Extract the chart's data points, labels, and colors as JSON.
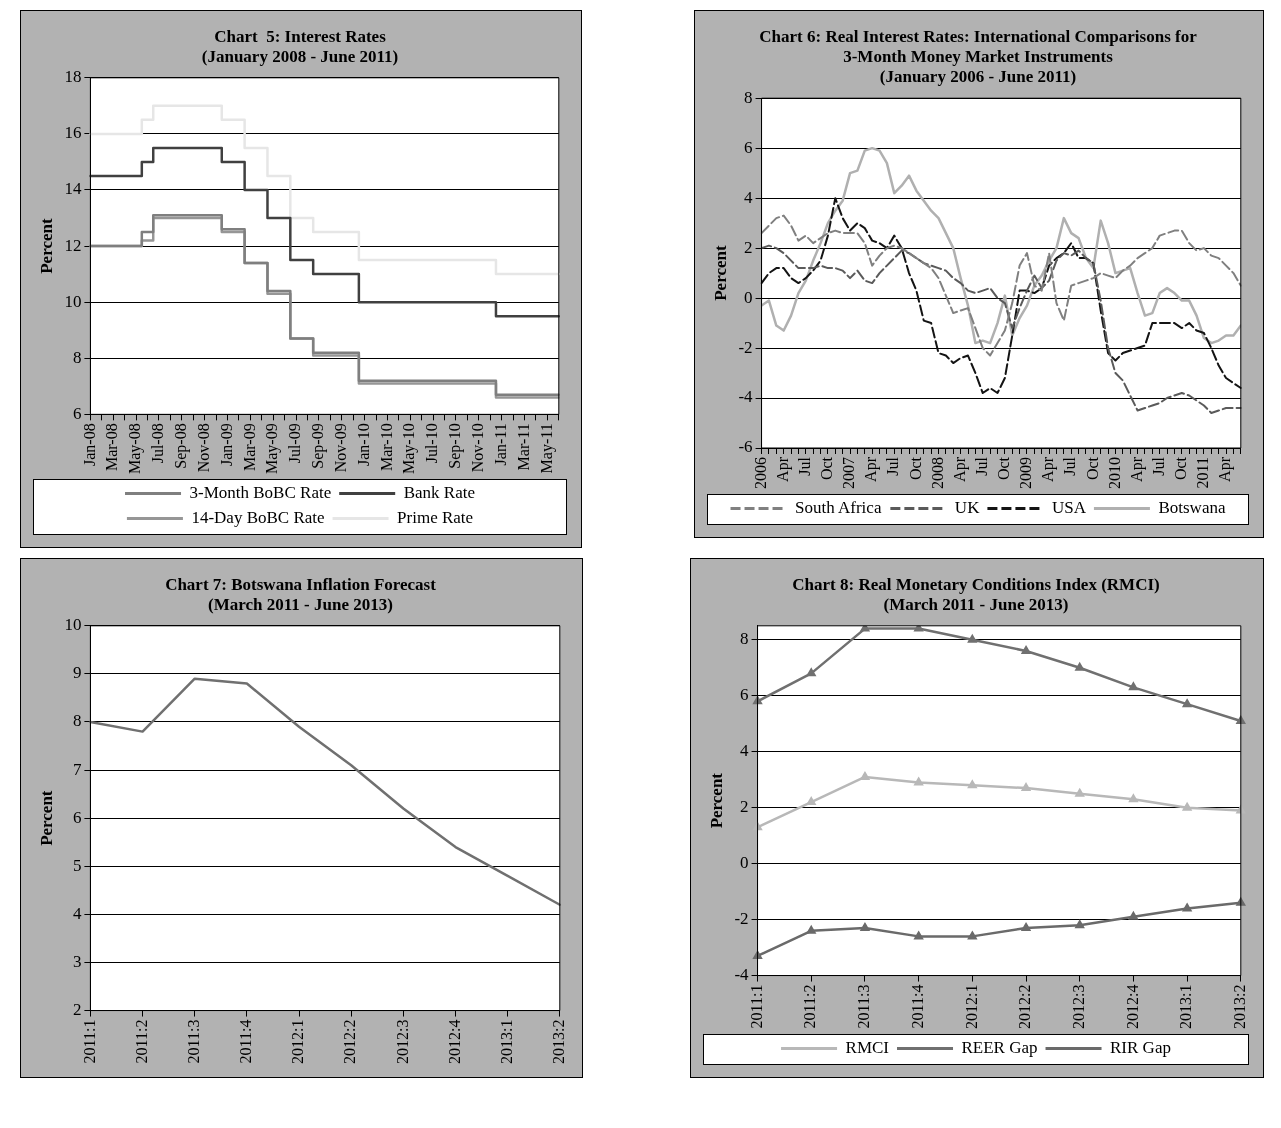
{
  "chart_data": [
    {
      "type": "step",
      "title": "Chart  5: Interest Rates",
      "subtitle": "(January 2008 - June 2011)",
      "ylabel": "Percent",
      "categories": [
        "Jan-08",
        null,
        "Mar-08",
        null,
        "May-08",
        null,
        "Jul-08",
        null,
        "Sep-08",
        null,
        "Nov-08",
        null,
        "Jan-09",
        null,
        "Mar-09",
        null,
        "May-09",
        null,
        "Jul-09",
        null,
        "Sep-09",
        null,
        "Nov-09",
        null,
        "Jan-10",
        null,
        "Mar-10",
        null,
        "May-10",
        null,
        "Jul-10",
        null,
        "Sep-10",
        null,
        "Nov-10",
        null,
        "Jan-11",
        null,
        "Mar-11",
        null,
        "May-11",
        null
      ],
      "series": [
        {
          "name": "3-Month BoBC Rate",
          "color": "#7f7f7f",
          "values": [
            12,
            12,
            12,
            12,
            12,
            12.5,
            13.1,
            13.1,
            13.1,
            13.1,
            13.1,
            13.1,
            12.6,
            12.6,
            11.4,
            11.4,
            10.4,
            10.4,
            8.7,
            8.7,
            8.2,
            8.2,
            8.2,
            8.2,
            7.2,
            7.2,
            7.2,
            7.2,
            7.2,
            7.2,
            7.2,
            7.2,
            7.2,
            7.2,
            7.2,
            7.2,
            6.7,
            6.7,
            6.7,
            6.7,
            6.7,
            6.7
          ]
        },
        {
          "name": "Bank Rate",
          "color": "#404040",
          "values": [
            14.5,
            14.5,
            14.5,
            14.5,
            14.5,
            15,
            15.5,
            15.5,
            15.5,
            15.5,
            15.5,
            15.5,
            15,
            15,
            14,
            14,
            13,
            13,
            11.5,
            11.5,
            11,
            11,
            11,
            11,
            10,
            10,
            10,
            10,
            10,
            10,
            10,
            10,
            10,
            10,
            10,
            10,
            9.5,
            9.5,
            9.5,
            9.5,
            9.5,
            9.5
          ]
        },
        {
          "name": "14-Day BoBC Rate",
          "color": "#969696",
          "values": [
            12,
            12,
            12,
            12,
            12,
            12.2,
            13,
            13,
            13,
            13,
            13,
            13,
            12.5,
            12.5,
            11.4,
            11.4,
            10.3,
            10.3,
            8.7,
            8.7,
            8.1,
            8.1,
            8.1,
            8.1,
            7.1,
            7.1,
            7.1,
            7.1,
            7.1,
            7.1,
            7.1,
            7.1,
            7.1,
            7.1,
            7.1,
            7.1,
            6.6,
            6.6,
            6.6,
            6.6,
            6.6,
            6.6
          ]
        },
        {
          "name": "Prime Rate",
          "color": "#e6e6e6",
          "values": [
            16,
            16,
            16,
            16,
            16,
            16.5,
            17,
            17,
            17,
            17,
            17,
            17,
            16.5,
            16.5,
            15.5,
            15.5,
            14.5,
            14.5,
            13,
            13,
            12.5,
            12.5,
            12.5,
            12.5,
            11.5,
            11.5,
            11.5,
            11.5,
            11.5,
            11.5,
            11.5,
            11.5,
            11.5,
            11.5,
            11.5,
            11.5,
            11,
            11,
            11,
            11,
            11,
            11
          ]
        }
      ],
      "ylim": [
        6,
        18
      ],
      "yticks": [
        6,
        8,
        10,
        12,
        14,
        16,
        18
      ],
      "grid": "y",
      "legend": "bottom",
      "line_style": "solid"
    },
    {
      "type": "line",
      "title": "Chart 6: Real Interest Rates: International Comparisons for 3-Month Money Market Instruments",
      "subtitle": "(January 2006 - June 2011)",
      "ylabel": "Percent",
      "categories": [
        "2006",
        null,
        null,
        "Apr",
        null,
        null,
        "Jul",
        null,
        null,
        "Oct",
        null,
        null,
        "2007",
        null,
        null,
        "Apr",
        null,
        null,
        "Jul",
        null,
        null,
        "Oct",
        null,
        null,
        "2008",
        null,
        null,
        "Apr",
        null,
        null,
        "Jul",
        null,
        null,
        "Oct",
        null,
        null,
        "2009",
        null,
        null,
        "Apr",
        null,
        null,
        "Jul",
        null,
        null,
        "Oct",
        null,
        null,
        "2010",
        null,
        null,
        "Apr",
        null,
        null,
        "Jul",
        null,
        null,
        "Oct",
        null,
        null,
        "2011",
        null,
        null,
        "Apr",
        null,
        null
      ],
      "series": [
        {
          "name": "South Africa",
          "color": "#808080",
          "line_style": "dashed",
          "values": [
            2.6,
            2.9,
            3.2,
            3.3,
            2.9,
            2.3,
            2.5,
            2.2,
            2.4,
            2.6,
            2.7,
            2.6,
            2.6,
            2.6,
            2.2,
            1.3,
            1.7,
            2,
            2.1,
            2,
            1.8,
            1.6,
            1.4,
            1.2,
            0.8,
            0.1,
            -0.6,
            -0.5,
            -0.4,
            -1.2,
            -2,
            -2.3,
            -1.8,
            -1.3,
            -0.2,
            1.3,
            1.8,
            0.5,
            0.3,
            1.8,
            -0.2,
            -0.9,
            0.5,
            0.6,
            0.7,
            0.8,
            1,
            0.9,
            0.8,
            1.1,
            1.3,
            1.6,
            1.8,
            2,
            2.5,
            2.6,
            2.7,
            2.7,
            2.2,
            1.9,
            2,
            1.7,
            1.6,
            1.3,
            1,
            0.5
          ]
        },
        {
          "name": "UK",
          "color": "#5a5a5a",
          "line_style": "dashed",
          "values": [
            2,
            2.1,
            2,
            1.8,
            1.5,
            1.2,
            1.2,
            1.2,
            1.3,
            1.2,
            1.2,
            1.1,
            0.8,
            1.1,
            0.7,
            0.6,
            1,
            1.3,
            1.6,
            1.9,
            1.8,
            1.6,
            1.4,
            1.3,
            1.2,
            1.1,
            0.8,
            0.6,
            0.3,
            0.2,
            0.3,
            0.4,
            0,
            -0.2,
            -1.2,
            -0.4,
            0.3,
            0.9,
            0.4,
            0.7,
            1.5,
            1.8,
            1.7,
            1.9,
            1.6,
            1.4,
            -0.1,
            -2,
            -3,
            -3.3,
            -3.9,
            -4.5,
            -4.4,
            -4.3,
            -4.2,
            -4,
            -3.9,
            -3.8,
            -3.9,
            -4.1,
            -4.3,
            -4.6,
            -4.5,
            -4.4,
            -4.4,
            -4.4
          ]
        },
        {
          "name": "USA",
          "color": "#141414",
          "line_style": "dashed",
          "values": [
            0.6,
            1,
            1.2,
            1.2,
            0.8,
            0.6,
            0.8,
            1.1,
            1.5,
            2.5,
            4,
            3.2,
            2.7,
            3,
            2.8,
            2.3,
            2.2,
            2,
            2.5,
            2,
            1,
            0.3,
            -0.9,
            -1,
            -2.2,
            -2.3,
            -2.6,
            -2.4,
            -2.3,
            -3,
            -3.8,
            -3.6,
            -3.8,
            -3.2,
            -1.5,
            0.3,
            0.3,
            0.2,
            0.4,
            1.3,
            1.6,
            1.8,
            2.2,
            1.6,
            1.6,
            1.4,
            -0.5,
            -2.2,
            -2.5,
            -2.2,
            -2.1,
            -2,
            -1.9,
            -1,
            -1,
            -1,
            -1,
            -1.2,
            -1,
            -1.3,
            -1.4,
            -2,
            -2.7,
            -3.2,
            -3.4,
            -3.6
          ]
        },
        {
          "name": "Botswana",
          "color": "#b0b0b0",
          "line_style": "solid",
          "values": [
            -0.3,
            -0.1,
            -1.1,
            -1.3,
            -0.7,
            0.2,
            0.7,
            1.5,
            2.2,
            3,
            3.5,
            3.9,
            5,
            5.1,
            5.9,
            6,
            5.9,
            5.4,
            4.2,
            4.5,
            4.9,
            4.3,
            3.9,
            3.5,
            3.2,
            2.6,
            2,
            0.8,
            -0.3,
            -1.8,
            -1.7,
            -1.8,
            -1,
            0.1,
            -1.5,
            -0.8,
            -0.3,
            0.5,
            0.9,
            1.5,
            2,
            3.2,
            2.6,
            2.4,
            1.6,
            1.2,
            3.1,
            2.2,
            1,
            1.1,
            1.2,
            0.2,
            -0.7,
            -0.6,
            0.2,
            0.4,
            0.2,
            -0.1,
            -0.1,
            -0.7,
            -1.6,
            -1.8,
            -1.7,
            -1.5,
            -1.5,
            -1.1
          ]
        }
      ],
      "ylim": [
        -6,
        8
      ],
      "yticks": [
        -6,
        -4,
        -2,
        0,
        2,
        4,
        6,
        8
      ],
      "grid": "y",
      "legend": "bottom"
    },
    {
      "type": "line",
      "title": "Chart 7: Botswana Inflation Forecast",
      "subtitle": "(March 2011 - June 2013)",
      "ylabel": "Percent",
      "categories": [
        "2011:1",
        "2011:2",
        "2011:3",
        "2011:4",
        "2012:1",
        "2012:2",
        "2012:3",
        "2012:4",
        "2013:1",
        "2013:2"
      ],
      "series": [
        {
          "color": "#707070",
          "values": [
            8,
            7.8,
            8.9,
            8.8,
            7.9,
            7.1,
            6.2,
            5.4,
            4.8,
            4.2
          ]
        }
      ],
      "ylim": [
        2,
        10
      ],
      "yticks": [
        2,
        3,
        4,
        5,
        6,
        7,
        8,
        9,
        10
      ],
      "grid": "y",
      "line_style": "solid"
    },
    {
      "type": "line",
      "title": "Chart 8: Real Monetary Conditions Index (RMCI)",
      "subtitle": "(March 2011 - June 2013)",
      "ylabel": "Percent",
      "categories": [
        "2011:1",
        "2011:2",
        "2011:3",
        "2011:4",
        "2012:1",
        "2012:2",
        "2012:3",
        "2012:4",
        "2013:1",
        "2013:2"
      ],
      "series": [
        {
          "name": "RMCI",
          "color": "#b8b8b8",
          "values": [
            1.3,
            2.2,
            3.1,
            2.9,
            2.8,
            2.7,
            2.5,
            2.3,
            2,
            1.9
          ]
        },
        {
          "name": "REER Gap",
          "color": "#707070",
          "values": [
            5.8,
            6.8,
            8.4,
            8.4,
            8,
            7.6,
            7,
            6.3,
            5.7,
            5.1
          ]
        },
        {
          "name": "RIR Gap",
          "color": "#6a6a6a",
          "values": [
            -3.3,
            -2.4,
            -2.3,
            -2.6,
            -2.6,
            -2.3,
            -2.2,
            -1.9,
            -1.6,
            -1.4
          ]
        }
      ],
      "ylim": [
        -4,
        8.5
      ],
      "yticks": [
        -4,
        -2,
        0,
        2,
        4,
        6,
        8
      ],
      "grid": "y",
      "legend": "bottom",
      "marker": "triangle",
      "line_style": "solid"
    }
  ]
}
